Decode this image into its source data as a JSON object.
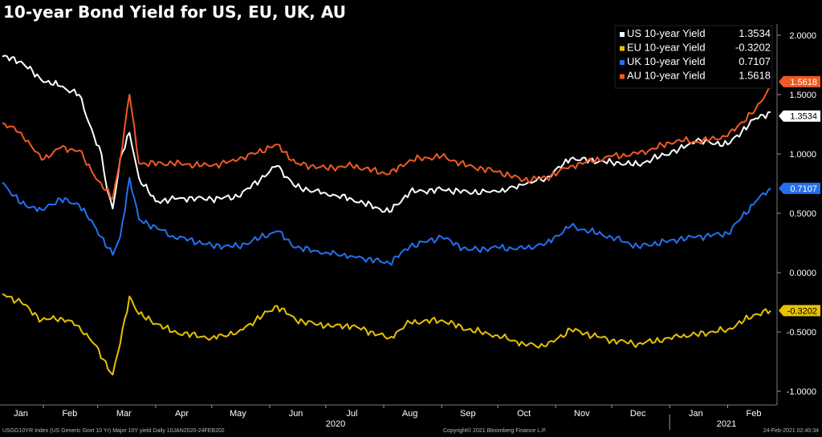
{
  "chart_data": {
    "type": "line",
    "title": "10-year Bond Yield for US, EU, UK, AU",
    "x_range": [
      "2020-01-10",
      "2021-02-24"
    ],
    "ylim": [
      -1.05,
      2.1
    ],
    "y_ticks": [
      2.0,
      1.5,
      1.0,
      0.5,
      0.0,
      -0.5,
      -1.0
    ],
    "y_tick_labels": [
      "2.0000",
      "1.5000",
      "1.0000",
      "0.5000",
      "0.0000",
      "-0.5000",
      "-1.0000"
    ],
    "x_tick_labels": [
      "Jan",
      "Feb",
      "Mar",
      "Apr",
      "May",
      "Jun",
      "Jul",
      "Aug",
      "Sep",
      "Oct",
      "Nov",
      "Dec",
      "Jan",
      "Feb"
    ],
    "year_labels": [
      "2020",
      "2021"
    ],
    "grid": false,
    "legend_position": "top-right",
    "series": [
      {
        "name": "US 10-year Yield",
        "last_label": "1.3534",
        "color": "#ffffff",
        "points": [
          [
            "2020-01-10",
            1.82
          ],
          [
            "2020-01-20",
            1.78
          ],
          [
            "2020-01-31",
            1.62
          ],
          [
            "2020-02-10",
            1.57
          ],
          [
            "2020-02-20",
            1.5
          ],
          [
            "2020-02-28",
            1.15
          ],
          [
            "2020-03-03",
            1.0
          ],
          [
            "2020-03-06",
            0.7
          ],
          [
            "2020-03-09",
            0.54
          ],
          [
            "2020-03-13",
            0.96
          ],
          [
            "2020-03-18",
            1.18
          ],
          [
            "2020-03-23",
            0.8
          ],
          [
            "2020-04-01",
            0.6
          ],
          [
            "2020-04-15",
            0.63
          ],
          [
            "2020-05-01",
            0.62
          ],
          [
            "2020-05-15",
            0.64
          ],
          [
            "2020-06-05",
            0.9
          ],
          [
            "2020-06-15",
            0.72
          ],
          [
            "2020-07-01",
            0.67
          ],
          [
            "2020-07-15",
            0.62
          ],
          [
            "2020-08-04",
            0.51
          ],
          [
            "2020-08-15",
            0.68
          ],
          [
            "2020-09-01",
            0.7
          ],
          [
            "2020-09-15",
            0.68
          ],
          [
            "2020-10-01",
            0.68
          ],
          [
            "2020-10-15",
            0.74
          ],
          [
            "2020-10-27",
            0.8
          ],
          [
            "2020-11-09",
            0.96
          ],
          [
            "2020-12-01",
            0.93
          ],
          [
            "2020-12-15",
            0.91
          ],
          [
            "2021-01-06",
            1.04
          ],
          [
            "2021-01-15",
            1.11
          ],
          [
            "2021-02-01",
            1.08
          ],
          [
            "2021-02-16",
            1.3
          ],
          [
            "2021-02-24",
            1.3534
          ]
        ]
      },
      {
        "name": "EU 10-year Yield",
        "last_label": "-0.3202",
        "color": "#e6c200",
        "points": [
          [
            "2020-01-10",
            -0.18
          ],
          [
            "2020-01-20",
            -0.25
          ],
          [
            "2020-01-31",
            -0.4
          ],
          [
            "2020-02-10",
            -0.38
          ],
          [
            "2020-02-20",
            -0.45
          ],
          [
            "2020-02-28",
            -0.6
          ],
          [
            "2020-03-09",
            -0.86
          ],
          [
            "2020-03-13",
            -0.6
          ],
          [
            "2020-03-18",
            -0.2
          ],
          [
            "2020-03-23",
            -0.35
          ],
          [
            "2020-04-10",
            -0.5
          ],
          [
            "2020-05-01",
            -0.55
          ],
          [
            "2020-05-15",
            -0.5
          ],
          [
            "2020-06-05",
            -0.28
          ],
          [
            "2020-06-15",
            -0.4
          ],
          [
            "2020-07-01",
            -0.45
          ],
          [
            "2020-07-15",
            -0.45
          ],
          [
            "2020-08-04",
            -0.55
          ],
          [
            "2020-08-15",
            -0.42
          ],
          [
            "2020-09-01",
            -0.4
          ],
          [
            "2020-09-15",
            -0.48
          ],
          [
            "2020-10-01",
            -0.53
          ],
          [
            "2020-10-15",
            -0.6
          ],
          [
            "2020-10-27",
            -0.62
          ],
          [
            "2020-11-09",
            -0.48
          ],
          [
            "2020-12-01",
            -0.57
          ],
          [
            "2020-12-15",
            -0.6
          ],
          [
            "2021-01-06",
            -0.54
          ],
          [
            "2021-01-15",
            -0.52
          ],
          [
            "2021-02-01",
            -0.48
          ],
          [
            "2021-02-16",
            -0.35
          ],
          [
            "2021-02-24",
            -0.3202
          ]
        ]
      },
      {
        "name": "UK 10-year Yield",
        "last_label": "0.7107",
        "color": "#2470f0",
        "points": [
          [
            "2020-01-10",
            0.76
          ],
          [
            "2020-01-20",
            0.58
          ],
          [
            "2020-01-31",
            0.53
          ],
          [
            "2020-02-10",
            0.62
          ],
          [
            "2020-02-20",
            0.57
          ],
          [
            "2020-02-28",
            0.4
          ],
          [
            "2020-03-09",
            0.15
          ],
          [
            "2020-03-13",
            0.3
          ],
          [
            "2020-03-18",
            0.8
          ],
          [
            "2020-03-23",
            0.45
          ],
          [
            "2020-04-10",
            0.31
          ],
          [
            "2020-05-01",
            0.23
          ],
          [
            "2020-05-15",
            0.22
          ],
          [
            "2020-06-05",
            0.35
          ],
          [
            "2020-06-15",
            0.21
          ],
          [
            "2020-07-01",
            0.17
          ],
          [
            "2020-07-15",
            0.14
          ],
          [
            "2020-08-04",
            0.08
          ],
          [
            "2020-08-15",
            0.22
          ],
          [
            "2020-09-01",
            0.3
          ],
          [
            "2020-09-15",
            0.19
          ],
          [
            "2020-10-01",
            0.21
          ],
          [
            "2020-10-15",
            0.2
          ],
          [
            "2020-10-27",
            0.25
          ],
          [
            "2020-11-09",
            0.39
          ],
          [
            "2020-12-01",
            0.3
          ],
          [
            "2020-12-15",
            0.22
          ],
          [
            "2021-01-06",
            0.28
          ],
          [
            "2021-01-15",
            0.3
          ],
          [
            "2021-02-01",
            0.33
          ],
          [
            "2021-02-16",
            0.6
          ],
          [
            "2021-02-24",
            0.7107
          ]
        ]
      },
      {
        "name": "AU 10-year Yield",
        "last_label": "1.5618",
        "color": "#f05a24",
        "points": [
          [
            "2020-01-10",
            1.26
          ],
          [
            "2020-01-20",
            1.18
          ],
          [
            "2020-01-31",
            0.95
          ],
          [
            "2020-02-10",
            1.05
          ],
          [
            "2020-02-20",
            1.03
          ],
          [
            "2020-02-28",
            0.82
          ],
          [
            "2020-03-09",
            0.62
          ],
          [
            "2020-03-13",
            0.95
          ],
          [
            "2020-03-18",
            1.5
          ],
          [
            "2020-03-23",
            0.92
          ],
          [
            "2020-04-10",
            0.92
          ],
          [
            "2020-05-01",
            0.9
          ],
          [
            "2020-05-15",
            0.95
          ],
          [
            "2020-06-05",
            1.08
          ],
          [
            "2020-06-15",
            0.92
          ],
          [
            "2020-07-01",
            0.88
          ],
          [
            "2020-07-15",
            0.9
          ],
          [
            "2020-08-04",
            0.83
          ],
          [
            "2020-08-15",
            0.95
          ],
          [
            "2020-09-01",
            0.98
          ],
          [
            "2020-09-15",
            0.9
          ],
          [
            "2020-10-01",
            0.85
          ],
          [
            "2020-10-15",
            0.78
          ],
          [
            "2020-10-27",
            0.8
          ],
          [
            "2020-11-09",
            0.9
          ],
          [
            "2020-12-01",
            0.98
          ],
          [
            "2020-12-15",
            1.0
          ],
          [
            "2021-01-06",
            1.12
          ],
          [
            "2021-01-15",
            1.1
          ],
          [
            "2021-02-01",
            1.15
          ],
          [
            "2021-02-16",
            1.38
          ],
          [
            "2021-02-24",
            1.5618
          ]
        ]
      }
    ]
  },
  "footer": {
    "left": "USGG10YR Index (US Generic Govt 10 Yr) Major 10Y yield  Daily 10JAN2020-24FEB202",
    "center": "Copyright© 2021 Bloomberg Finance L.P.",
    "right": "24-Feb-2021 02:40:34"
  }
}
